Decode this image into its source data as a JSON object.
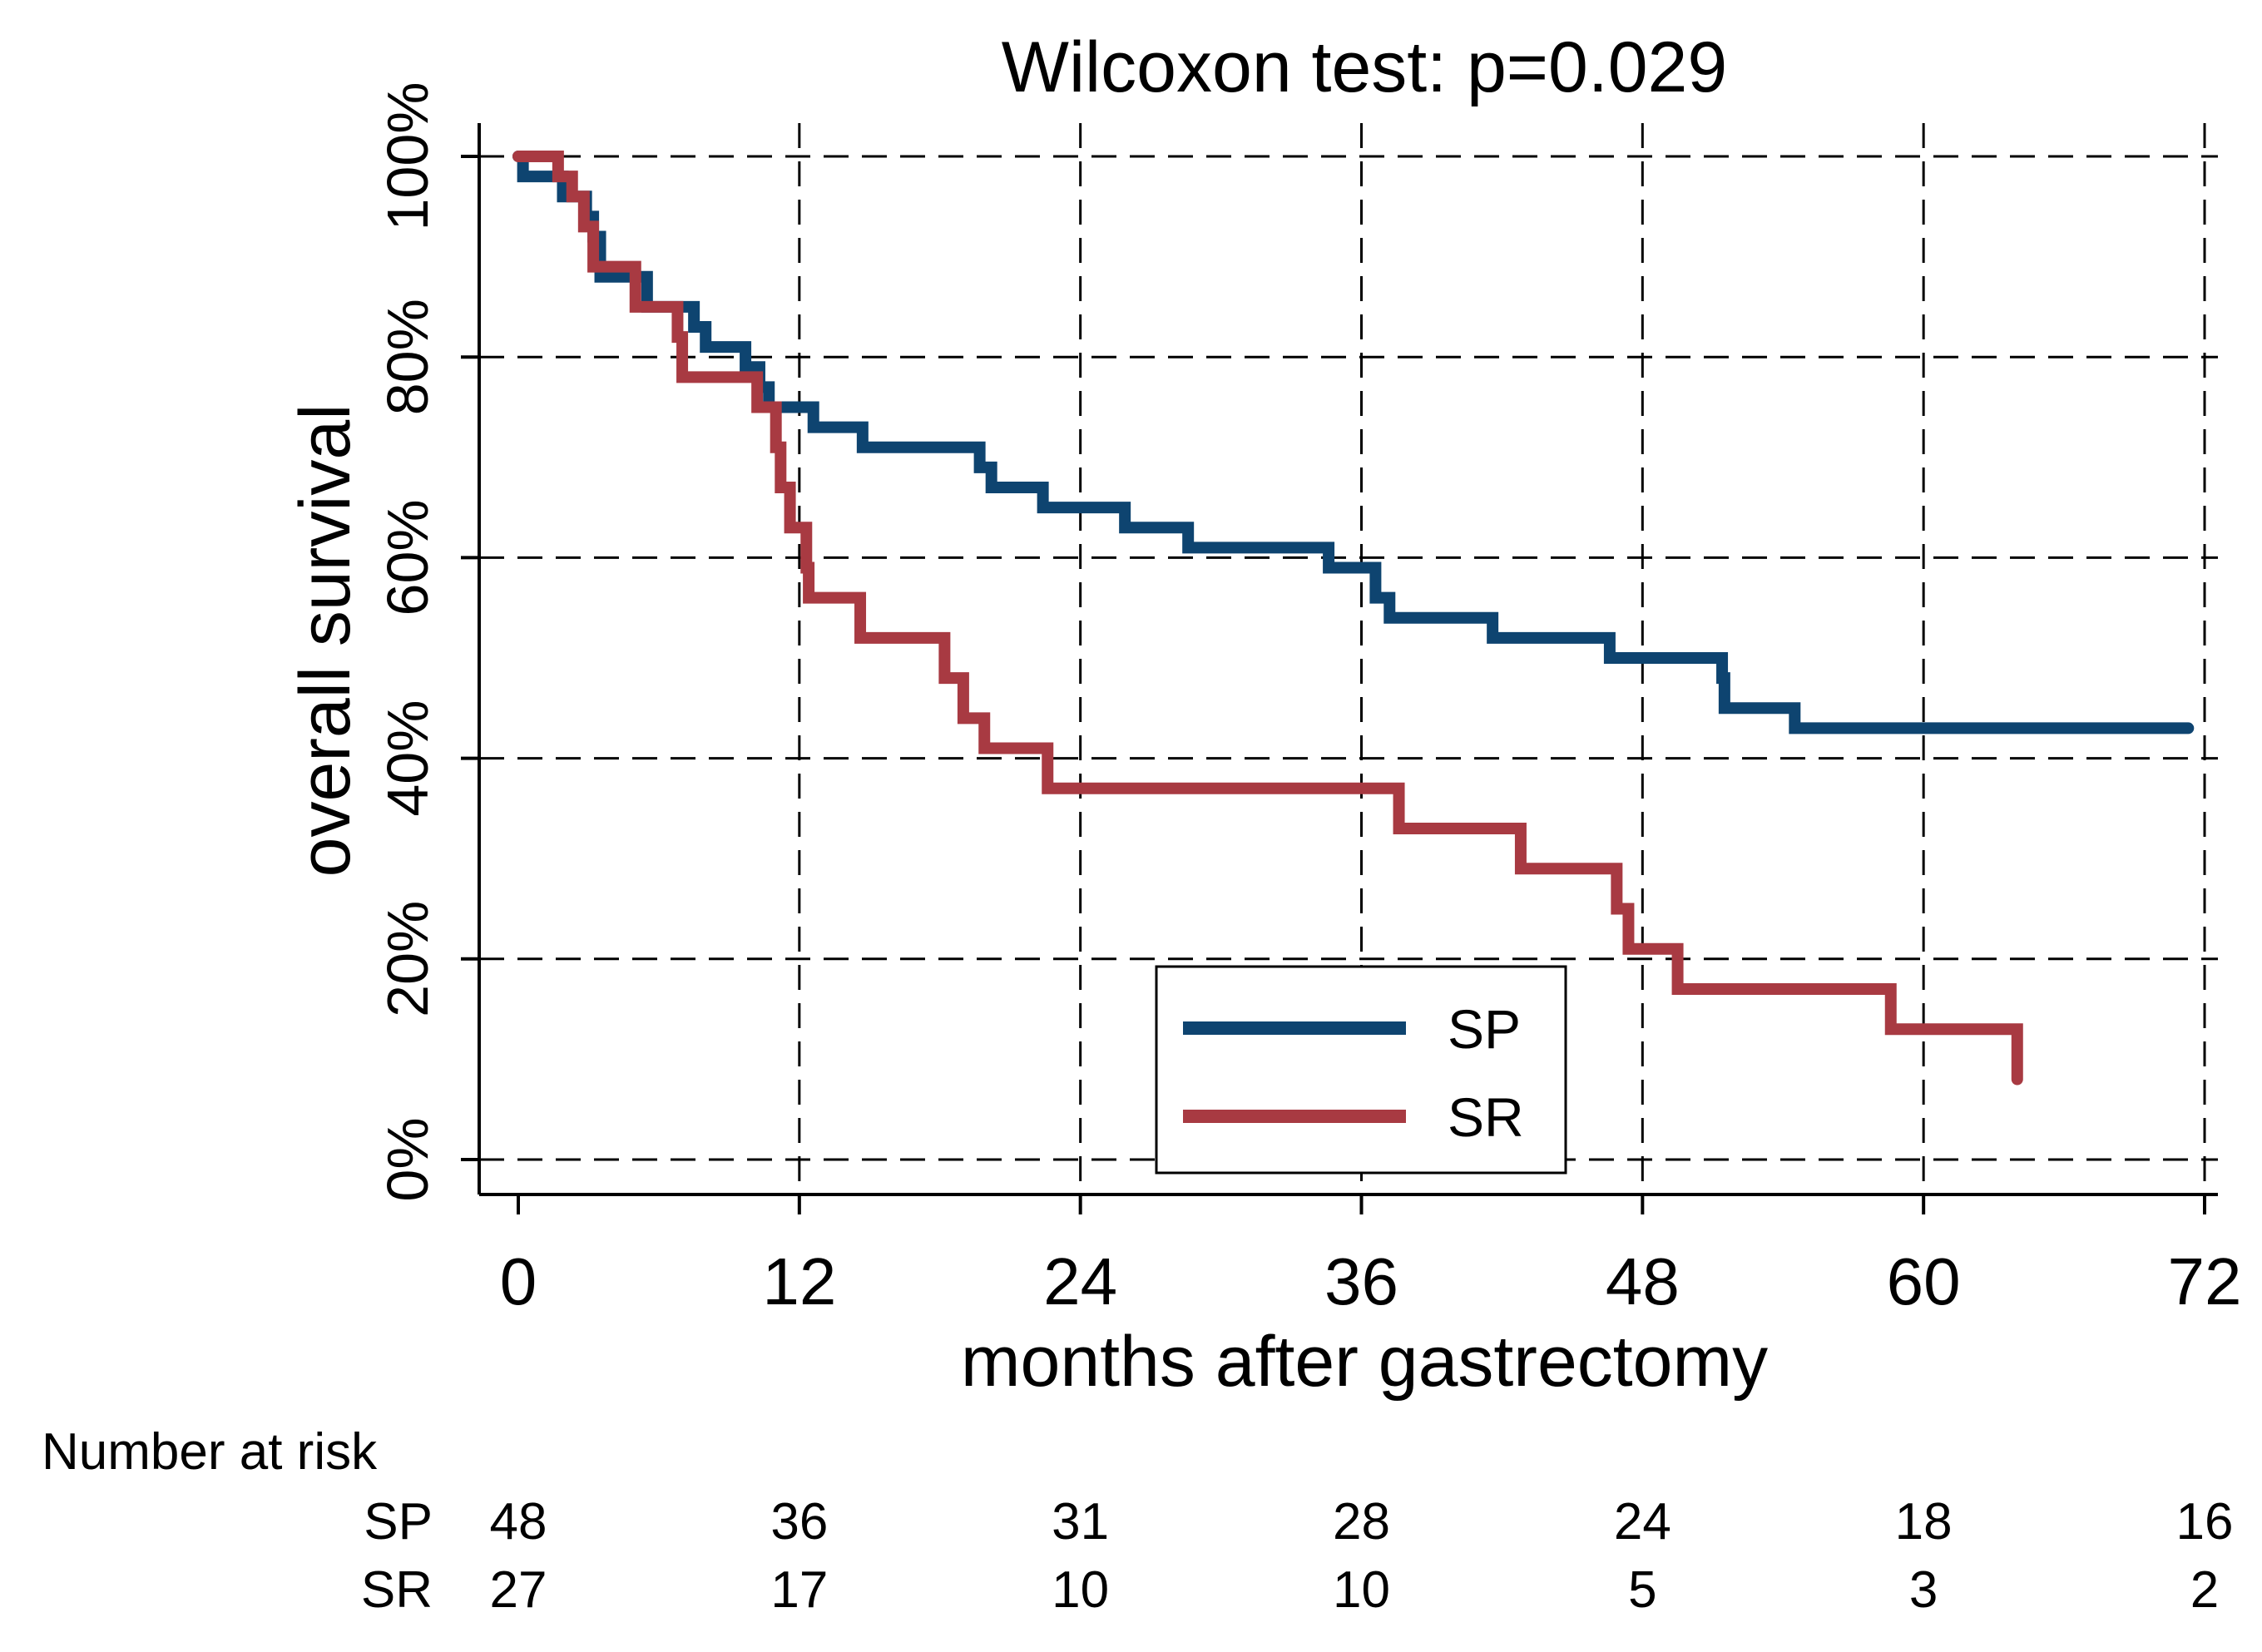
{
  "chart_data": {
    "type": "line",
    "subtype": "kaplan-meier",
    "title": "Wilcoxon test: p=0.029",
    "xlabel": "months after gastrectomy",
    "ylabel": "overall survival",
    "xlim": [
      0,
      72
    ],
    "ylim": [
      0,
      100
    ],
    "x_ticks": [
      "0",
      "12",
      "24",
      "36",
      "48",
      "60",
      "72"
    ],
    "x_tick_values": [
      0,
      12,
      24,
      36,
      48,
      60,
      72
    ],
    "y_ticks": [
      "0%",
      "20%",
      "40%",
      "60%",
      "80%",
      "100%"
    ],
    "y_tick_values": [
      0,
      20,
      40,
      60,
      80,
      100
    ],
    "grid": "dashed",
    "legend_position": "bottom-center",
    "series": [
      {
        "name": "SP",
        "color": "#0e4470",
        "steps": [
          [
            0,
            100
          ],
          [
            0.2,
            98
          ],
          [
            1.9,
            96
          ],
          [
            2.9,
            94
          ],
          [
            3.2,
            92
          ],
          [
            3.5,
            90
          ],
          [
            3.5,
            88
          ],
          [
            5.5,
            85
          ],
          [
            7.5,
            83
          ],
          [
            8.0,
            81
          ],
          [
            9.7,
            79
          ],
          [
            10.3,
            77
          ],
          [
            10.7,
            75
          ],
          [
            12.6,
            73
          ],
          [
            14.7,
            71
          ],
          [
            19.7,
            69
          ],
          [
            20.2,
            67
          ],
          [
            22.4,
            65
          ],
          [
            25.9,
            63
          ],
          [
            28.6,
            61
          ],
          [
            34.6,
            59
          ],
          [
            36.6,
            56
          ],
          [
            37.2,
            54
          ],
          [
            41.6,
            52
          ],
          [
            46.6,
            50
          ],
          [
            51.4,
            48
          ],
          [
            51.5,
            45
          ],
          [
            54.5,
            43
          ],
          [
            71.3,
            43
          ]
        ]
      },
      {
        "name": "SR",
        "color": "#a83a42",
        "steps": [
          [
            0,
            100
          ],
          [
            1.7,
            98
          ],
          [
            2.3,
            96
          ],
          [
            2.8,
            93
          ],
          [
            3.2,
            89
          ],
          [
            5.0,
            85
          ],
          [
            6.8,
            82
          ],
          [
            7.0,
            78
          ],
          [
            10.2,
            75
          ],
          [
            11.0,
            71
          ],
          [
            11.2,
            67
          ],
          [
            11.6,
            63
          ],
          [
            12.3,
            59
          ],
          [
            12.4,
            56
          ],
          [
            14.6,
            52
          ],
          [
            18.2,
            48
          ],
          [
            19.0,
            44
          ],
          [
            19.9,
            41
          ],
          [
            22.6,
            37
          ],
          [
            37.6,
            33
          ],
          [
            42.8,
            29
          ],
          [
            46.9,
            25
          ],
          [
            47.4,
            21
          ],
          [
            49.5,
            17
          ],
          [
            58.6,
            13
          ],
          [
            64.0,
            13
          ],
          [
            64.0,
            8
          ]
        ]
      }
    ],
    "number_at_risk": {
      "header": "Number at risk",
      "times": [
        0,
        12,
        24,
        36,
        48,
        60,
        72
      ],
      "rows": [
        {
          "label": "SP",
          "values": [
            "48",
            "36",
            "31",
            "28",
            "24",
            "18",
            "16"
          ]
        },
        {
          "label": "SR",
          "values": [
            "27",
            "17",
            "10",
            "10",
            "5",
            "3",
            "2"
          ]
        }
      ]
    }
  }
}
